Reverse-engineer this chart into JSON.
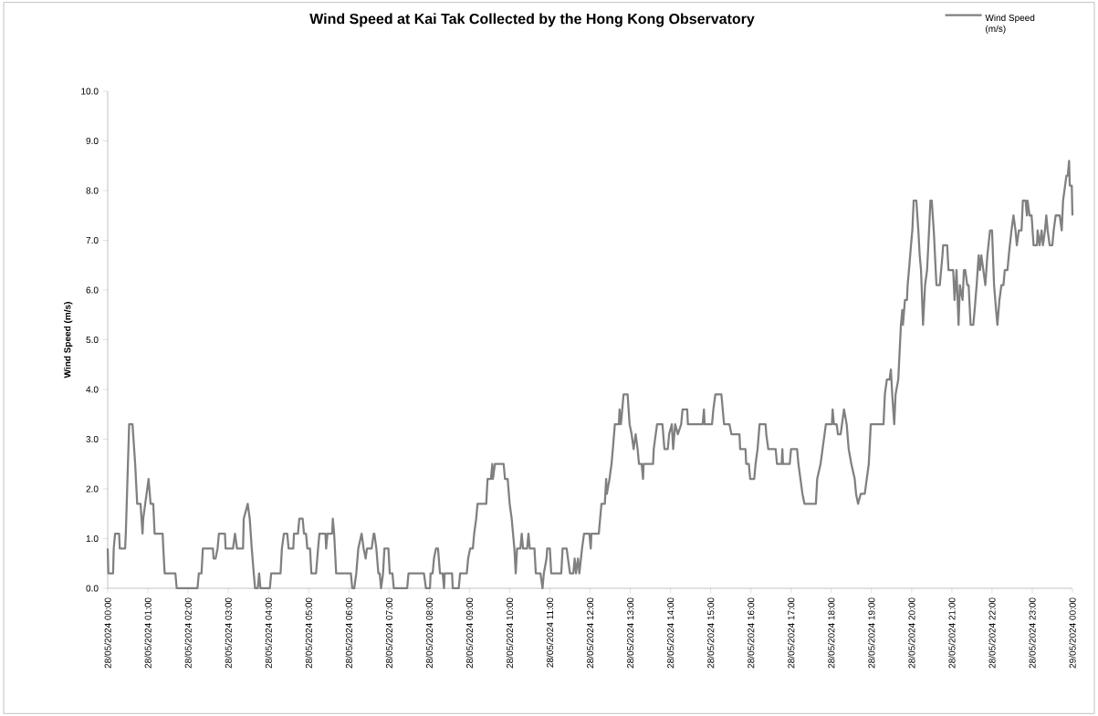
{
  "chart_data": {
    "type": "line",
    "title": "Wind Speed at Kai Tak Collected by the Hong Kong Observatory",
    "ylabel": "Wind Speed (m/s)",
    "legend": "top right",
    "xlim": [
      "2024-05-28T00:00",
      "2024-05-29T00:00"
    ],
    "ylim": [
      0,
      10
    ],
    "xticks": [
      {
        "value": "2024-05-28T00:00",
        "label": "28/05/2024 00:00"
      },
      {
        "value": "2024-05-28T01:00",
        "label": "28/05/2024 01:00"
      },
      {
        "value": "2024-05-28T02:00",
        "label": "28/05/2024 02:00"
      },
      {
        "value": "2024-05-28T03:00",
        "label": "28/05/2024 03:00"
      },
      {
        "value": "2024-05-28T04:00",
        "label": "28/05/2024 04:00"
      },
      {
        "value": "2024-05-28T05:00",
        "label": "28/05/2024 05:00"
      },
      {
        "value": "2024-05-28T06:00",
        "label": "28/05/2024 06:00"
      },
      {
        "value": "2024-05-28T07:00",
        "label": "28/05/2024 07:00"
      },
      {
        "value": "2024-05-28T08:00",
        "label": "28/05/2024 08:00"
      },
      {
        "value": "2024-05-28T09:00",
        "label": "28/05/2024 09:00"
      },
      {
        "value": "2024-05-28T10:00",
        "label": "28/05/2024 10:00"
      },
      {
        "value": "2024-05-28T11:00",
        "label": "28/05/2024 11:00"
      },
      {
        "value": "2024-05-28T12:00",
        "label": "28/05/2024 12:00"
      },
      {
        "value": "2024-05-28T13:00",
        "label": "28/05/2024 13:00"
      },
      {
        "value": "2024-05-28T14:00",
        "label": "28/05/2024 14:00"
      },
      {
        "value": "2024-05-28T15:00",
        "label": "28/05/2024 15:00"
      },
      {
        "value": "2024-05-28T16:00",
        "label": "28/05/2024 16:00"
      },
      {
        "value": "2024-05-28T17:00",
        "label": "28/05/2024 17:00"
      },
      {
        "value": "2024-05-28T18:00",
        "label": "28/05/2024 18:00"
      },
      {
        "value": "2024-05-28T19:00",
        "label": "28/05/2024 19:00"
      },
      {
        "value": "2024-05-28T20:00",
        "label": "28/05/2024 20:00"
      },
      {
        "value": "2024-05-28T21:00",
        "label": "28/05/2024 21:00"
      },
      {
        "value": "2024-05-28T22:00",
        "label": "28/05/2024 22:00"
      },
      {
        "value": "2024-05-28T23:00",
        "label": "28/05/2024 23:00"
      },
      {
        "value": "2024-05-29T00:00",
        "label": "29/05/2024 00:00"
      }
    ],
    "yticks": [
      {
        "value": 0,
        "label": "0.0"
      },
      {
        "value": 1,
        "label": "1.0"
      },
      {
        "value": 2,
        "label": "2.0"
      },
      {
        "value": 3,
        "label": "3.0"
      },
      {
        "value": 4,
        "label": "4.0"
      },
      {
        "value": 5,
        "label": "5.0"
      },
      {
        "value": 6,
        "label": "6.0"
      },
      {
        "value": 7,
        "label": "7.0"
      },
      {
        "value": 8,
        "label": "8.0"
      },
      {
        "value": 9,
        "label": "9.0"
      },
      {
        "value": 10,
        "label": "10.0"
      }
    ],
    "series": [
      {
        "name": "Wind Speed (m/s)",
        "color": "#808080",
        "x": [
          "2024-05-28T00:00",
          "2024-05-28T00:01",
          "2024-05-28T00:08",
          "2024-05-28T00:09",
          "2024-05-28T00:11",
          "2024-05-28T00:17",
          "2024-05-28T00:18",
          "2024-05-28T00:26",
          "2024-05-28T00:27",
          "2024-05-28T00:32",
          "2024-05-28T00:37",
          "2024-05-28T00:41",
          "2024-05-28T00:44",
          "2024-05-28T00:49",
          "2024-05-28T00:52",
          "2024-05-28T00:53",
          "2024-05-28T00:56",
          "2024-05-28T01:01",
          "2024-05-28T01:04",
          "2024-05-28T01:08",
          "2024-05-28T01:10",
          "2024-05-28T01:22",
          "2024-05-28T01:23",
          "2024-05-28T01:25",
          "2024-05-28T01:41",
          "2024-05-28T01:43",
          "2024-05-28T02:14",
          "2024-05-28T02:16",
          "2024-05-28T02:20",
          "2024-05-28T02:22",
          "2024-05-28T02:37",
          "2024-05-28T02:38",
          "2024-05-28T02:41",
          "2024-05-28T02:44",
          "2024-05-28T02:46",
          "2024-05-28T02:55",
          "2024-05-28T02:56",
          "2024-05-28T03:07",
          "2024-05-28T03:10",
          "2024-05-28T03:13",
          "2024-05-28T03:22",
          "2024-05-28T03:23",
          "2024-05-28T03:29",
          "2024-05-28T03:32",
          "2024-05-28T03:35",
          "2024-05-28T03:38",
          "2024-05-28T03:40",
          "2024-05-28T03:44",
          "2024-05-28T03:46",
          "2024-05-28T03:48",
          "2024-05-28T04:02",
          "2024-05-28T04:04",
          "2024-05-28T04:18",
          "2024-05-28T04:20",
          "2024-05-28T04:23",
          "2024-05-28T04:28",
          "2024-05-28T04:30",
          "2024-05-28T04:37",
          "2024-05-28T04:38",
          "2024-05-28T04:44",
          "2024-05-28T04:46",
          "2024-05-28T04:51",
          "2024-05-28T04:53",
          "2024-05-28T04:56",
          "2024-05-28T04:58",
          "2024-05-28T05:02",
          "2024-05-28T05:04",
          "2024-05-28T05:11",
          "2024-05-28T05:14",
          "2024-05-28T05:16",
          "2024-05-28T05:25",
          "2024-05-28T05:26",
          "2024-05-28T05:28",
          "2024-05-28T05:35",
          "2024-05-28T05:36",
          "2024-05-28T05:38",
          "2024-05-28T05:41",
          "2024-05-28T06:03",
          "2024-05-28T06:05",
          "2024-05-28T06:08",
          "2024-05-28T06:11",
          "2024-05-28T06:14",
          "2024-05-28T06:19",
          "2024-05-28T06:22",
          "2024-05-28T06:25",
          "2024-05-28T06:27",
          "2024-05-28T06:34",
          "2024-05-28T06:37",
          "2024-05-28T06:38",
          "2024-05-28T06:41",
          "2024-05-28T06:44",
          "2024-05-28T06:46",
          "2024-05-28T06:48",
          "2024-05-28T06:51",
          "2024-05-28T06:53",
          "2024-05-28T06:59",
          "2024-05-28T07:01",
          "2024-05-28T07:05",
          "2024-05-28T07:07",
          "2024-05-28T07:27",
          "2024-05-28T07:29",
          "2024-05-28T07:52",
          "2024-05-28T07:55",
          "2024-05-28T08:01",
          "2024-05-28T08:02",
          "2024-05-28T08:05",
          "2024-05-28T08:07",
          "2024-05-28T08:10",
          "2024-05-28T08:13",
          "2024-05-28T08:16",
          "2024-05-28T08:20",
          "2024-05-28T08:22",
          "2024-05-28T08:23",
          "2024-05-28T08:34",
          "2024-05-28T08:35",
          "2024-05-28T08:44",
          "2024-05-28T08:46",
          "2024-05-28T08:56",
          "2024-05-28T08:58",
          "2024-05-28T09:01",
          "2024-05-28T09:05",
          "2024-05-28T09:07",
          "2024-05-28T09:10",
          "2024-05-28T09:12",
          "2024-05-28T09:25",
          "2024-05-28T09:27",
          "2024-05-28T09:32",
          "2024-05-28T09:34",
          "2024-05-28T09:35",
          "2024-05-28T09:38",
          "2024-05-28T09:51",
          "2024-05-28T09:53",
          "2024-05-28T09:57",
          "2024-05-28T10:00",
          "2024-05-28T10:03",
          "2024-05-28T10:07",
          "2024-05-28T10:09",
          "2024-05-28T10:11",
          "2024-05-28T10:16",
          "2024-05-28T10:18",
          "2024-05-28T10:20",
          "2024-05-28T10:26",
          "2024-05-28T10:28",
          "2024-05-28T10:30",
          "2024-05-28T10:37",
          "2024-05-28T10:39",
          "2024-05-28T10:46",
          "2024-05-28T10:49",
          "2024-05-28T10:51",
          "2024-05-28T10:55",
          "2024-05-28T10:56",
          "2024-05-28T11:00",
          "2024-05-28T11:02",
          "2024-05-28T11:17",
          "2024-05-28T11:19",
          "2024-05-28T11:25",
          "2024-05-28T11:27",
          "2024-05-28T11:30",
          "2024-05-28T11:35",
          "2024-05-28T11:37",
          "2024-05-28T11:39",
          "2024-05-28T11:42",
          "2024-05-28T11:44",
          "2024-05-28T11:48",
          "2024-05-28T11:51",
          "2024-05-28T11:59",
          "2024-05-28T12:01",
          "2024-05-28T12:02",
          "2024-05-28T12:13",
          "2024-05-28T12:15",
          "2024-05-28T12:17",
          "2024-05-28T12:22",
          "2024-05-28T12:24",
          "2024-05-28T12:25",
          "2024-05-28T12:29",
          "2024-05-28T12:32",
          "2024-05-28T12:34",
          "2024-05-28T12:37",
          "2024-05-28T12:43",
          "2024-05-28T12:44",
          "2024-05-28T12:46",
          "2024-05-28T12:48",
          "2024-05-28T12:50",
          "2024-05-28T12:56",
          "2024-05-28T12:59",
          "2024-05-28T13:02",
          "2024-05-28T13:05",
          "2024-05-28T13:08",
          "2024-05-28T13:11",
          "2024-05-28T13:13",
          "2024-05-28T13:17",
          "2024-05-28T13:19",
          "2024-05-28T13:20",
          "2024-05-28T13:34",
          "2024-05-28T13:35",
          "2024-05-28T13:40",
          "2024-05-28T13:48",
          "2024-05-28T13:51",
          "2024-05-28T13:56",
          "2024-05-28T13:58",
          "2024-05-28T14:02",
          "2024-05-28T14:04",
          "2024-05-28T14:07",
          "2024-05-28T14:11",
          "2024-05-28T14:16",
          "2024-05-28T14:18",
          "2024-05-28T14:25",
          "2024-05-28T14:26",
          "2024-05-28T14:48",
          "2024-05-28T14:50",
          "2024-05-28T14:51",
          "2024-05-28T15:02",
          "2024-05-28T15:04",
          "2024-05-28T15:07",
          "2024-05-28T15:16",
          "2024-05-28T15:18",
          "2024-05-28T15:20",
          "2024-05-28T15:28",
          "2024-05-28T15:31",
          "2024-05-28T15:43",
          "2024-05-28T15:44",
          "2024-05-28T15:52",
          "2024-05-28T15:53",
          "2024-05-28T15:57",
          "2024-05-28T15:59",
          "2024-05-28T16:05",
          "2024-05-28T16:07",
          "2024-05-28T16:10",
          "2024-05-28T16:13",
          "2024-05-28T16:22",
          "2024-05-28T16:23",
          "2024-05-28T16:26",
          "2024-05-28T16:37",
          "2024-05-28T16:39",
          "2024-05-28T16:46",
          "2024-05-28T16:47",
          "2024-05-28T16:48",
          "2024-05-28T16:58",
          "2024-05-28T17:00",
          "2024-05-28T17:09",
          "2024-05-28T17:11",
          "2024-05-28T17:14",
          "2024-05-28T17:17",
          "2024-05-28T17:20",
          "2024-05-28T17:37",
          "2024-05-28T17:39",
          "2024-05-28T17:44",
          "2024-05-28T17:47",
          "2024-05-28T17:52",
          "2024-05-28T18:01",
          "2024-05-28T18:02",
          "2024-05-28T18:04",
          "2024-05-28T18:08",
          "2024-05-28T18:10",
          "2024-05-28T18:14",
          "2024-05-28T18:16",
          "2024-05-28T18:19",
          "2024-05-28T18:23",
          "2024-05-28T18:26",
          "2024-05-28T18:30",
          "2024-05-28T18:35",
          "2024-05-28T18:37",
          "2024-05-28T18:40",
          "2024-05-28T18:44",
          "2024-05-28T18:50",
          "2024-05-28T18:53",
          "2024-05-28T18:56",
          "2024-05-28T18:59",
          "2024-05-28T19:18",
          "2024-05-28T19:20",
          "2024-05-28T19:23",
          "2024-05-28T19:27",
          "2024-05-28T19:29",
          "2024-05-28T19:31",
          "2024-05-28T19:34",
          "2024-05-28T19:36",
          "2024-05-28T19:40",
          "2024-05-28T19:44",
          "2024-05-28T19:46",
          "2024-05-28T19:47",
          "2024-05-28T19:50",
          "2024-05-28T19:53",
          "2024-05-28T19:54",
          "2024-05-28T19:56",
          "2024-05-28T19:59",
          "2024-05-28T20:01",
          "2024-05-28T20:03",
          "2024-05-28T20:07",
          "2024-05-28T20:10",
          "2024-05-28T20:12",
          "2024-05-28T20:14",
          "2024-05-28T20:17",
          "2024-05-28T20:20",
          "2024-05-28T20:23",
          "2024-05-28T20:26",
          "2024-05-28T20:28",
          "2024-05-28T20:30",
          "2024-05-28T20:33",
          "2024-05-28T20:37",
          "2024-05-28T20:42",
          "2024-05-28T20:46",
          "2024-05-28T20:47",
          "2024-05-28T20:53",
          "2024-05-28T20:55",
          "2024-05-28T21:02",
          "2024-05-28T21:04",
          "2024-05-28T21:07",
          "2024-05-28T21:10",
          "2024-05-28T21:12",
          "2024-05-28T21:16",
          "2024-05-28T21:18",
          "2024-05-28T21:20",
          "2024-05-28T21:23",
          "2024-05-28T21:25",
          "2024-05-28T21:28",
          "2024-05-28T21:32",
          "2024-05-28T21:34",
          "2024-05-28T21:37",
          "2024-05-28T21:40",
          "2024-05-28T21:42",
          "2024-05-28T21:44",
          "2024-05-28T21:47",
          "2024-05-28T21:50",
          "2024-05-28T21:53",
          "2024-05-28T21:57",
          "2024-05-28T22:00",
          "2024-05-28T22:03",
          "2024-05-28T22:06",
          "2024-05-28T22:08",
          "2024-05-28T22:11",
          "2024-05-28T22:14",
          "2024-05-28T22:17",
          "2024-05-28T22:19",
          "2024-05-28T22:23",
          "2024-05-28T22:25",
          "2024-05-28T22:29",
          "2024-05-28T22:32",
          "2024-05-28T22:35",
          "2024-05-28T22:37",
          "2024-05-28T22:40",
          "2024-05-28T22:44",
          "2024-05-28T22:46",
          "2024-05-28T22:50",
          "2024-05-28T22:52",
          "2024-05-28T22:53",
          "2024-05-28T22:56",
          "2024-05-28T22:59",
          "2024-05-28T23:02",
          "2024-05-28T23:07",
          "2024-05-28T23:08",
          "2024-05-28T23:11",
          "2024-05-28T23:14",
          "2024-05-28T23:16",
          "2024-05-28T23:19",
          "2024-05-28T23:21",
          "2024-05-28T23:23",
          "2024-05-28T23:26",
          "2024-05-28T23:30",
          "2024-05-28T23:32",
          "2024-05-28T23:35",
          "2024-05-28T23:41",
          "2024-05-28T23:44",
          "2024-05-28T23:46",
          "2024-05-28T23:49",
          "2024-05-28T23:51",
          "2024-05-28T23:53",
          "2024-05-28T23:55",
          "2024-05-28T23:56",
          "2024-05-28T23:59",
          "2024-05-29T00:00"
        ],
        "values": [
          0.8,
          0.3,
          0.3,
          0.8,
          1.1,
          1.1,
          0.8,
          0.8,
          1.1,
          3.3,
          3.3,
          2.5,
          1.7,
          1.7,
          1.1,
          1.4,
          1.7,
          2.2,
          1.7,
          1.7,
          1.1,
          1.1,
          0.8,
          0.3,
          0.3,
          0,
          0,
          0.3,
          0.3,
          0.8,
          0.8,
          0.6,
          0.6,
          0.8,
          1.1,
          1.1,
          0.8,
          0.8,
          1.1,
          0.8,
          0.8,
          1.4,
          1.7,
          1.4,
          0.8,
          0.3,
          0,
          0,
          0.3,
          0,
          0,
          0.3,
          0.3,
          0.8,
          1.1,
          1.1,
          0.8,
          0.8,
          1.1,
          1.1,
          1.4,
          1.4,
          1.1,
          1.1,
          0.8,
          0.8,
          0.3,
          0.3,
          0.8,
          1.1,
          1.1,
          0.8,
          1.1,
          1.1,
          1.4,
          1.1,
          0.3,
          0.3,
          0,
          0,
          0.3,
          0.8,
          1.1,
          0.8,
          0.6,
          0.8,
          0.8,
          1.1,
          1.1,
          0.8,
          0.3,
          0.3,
          0,
          0.3,
          0.8,
          0.8,
          0.3,
          0.3,
          0,
          0,
          0.3,
          0.3,
          0,
          0,
          0.3,
          0.3,
          0.6,
          0.8,
          0.8,
          0.3,
          0.3,
          0,
          0.3,
          0.3,
          0,
          0,
          0.3,
          0.3,
          0.6,
          0.8,
          0.8,
          1.1,
          1.4,
          1.7,
          1.7,
          2.2,
          2.2,
          2.5,
          2.2,
          2.5,
          2.5,
          2.2,
          2.2,
          1.7,
          1.4,
          0.8,
          0.3,
          0.8,
          0.8,
          1.1,
          0.8,
          0.8,
          1.1,
          0.8,
          0.8,
          0.3,
          0.3,
          0,
          0.3,
          0.6,
          0.8,
          0.8,
          0.3,
          0.3,
          0.8,
          0.8,
          0.6,
          0.3,
          0.3,
          0.6,
          0.3,
          0.6,
          0.3,
          0.8,
          1.1,
          1.1,
          0.8,
          1.1,
          1.1,
          1.4,
          1.7,
          1.7,
          2.2,
          1.9,
          2.2,
          2.5,
          2.8,
          3.3,
          3.3,
          3.6,
          3.3,
          3.6,
          3.9,
          3.9,
          3.3,
          3.1,
          2.8,
          3.1,
          2.8,
          2.5,
          2.5,
          2.2,
          2.5,
          2.5,
          2.8,
          3.3,
          3.3,
          2.8,
          2.8,
          3.1,
          3.3,
          2.8,
          3.3,
          3.1,
          3.3,
          3.6,
          3.6,
          3.3,
          3.3,
          3.6,
          3.3,
          3.3,
          3.6,
          3.9,
          3.9,
          3.6,
          3.3,
          3.3,
          3.1,
          3.1,
          2.8,
          2.8,
          2.5,
          2.5,
          2.2,
          2.2,
          2.5,
          2.8,
          3.3,
          3.3,
          3.1,
          2.8,
          2.8,
          2.5,
          2.5,
          2.8,
          2.5,
          2.5,
          2.8,
          2.8,
          2.5,
          2.2,
          1.9,
          1.7,
          1.7,
          2.2,
          2.5,
          2.8,
          3.3,
          3.3,
          3.6,
          3.3,
          3.3,
          3.1,
          3.1,
          3.3,
          3.6,
          3.3,
          2.8,
          2.5,
          2.2,
          1.9,
          1.7,
          1.9,
          1.9,
          2.2,
          2.5,
          3.3,
          3.3,
          3.9,
          4.2,
          4.2,
          4.4,
          3.9,
          3.3,
          3.9,
          4.2,
          5.3,
          5.6,
          5.3,
          5.8,
          5.8,
          6.1,
          6.4,
          6.9,
          7.2,
          7.8,
          7.8,
          7.2,
          6.7,
          6.4,
          5.3,
          6.1,
          6.4,
          7.2,
          7.8,
          7.8,
          7.2,
          6.1,
          6.1,
          6.7,
          6.9,
          6.9,
          6.4,
          6.4,
          5.8,
          6.4,
          5.3,
          6.1,
          5.8,
          6.4,
          6.4,
          6.1,
          6.1,
          5.3,
          5.3,
          5.6,
          6.1,
          6.7,
          6.4,
          6.7,
          6.4,
          6.1,
          6.7,
          7.2,
          7.2,
          6.1,
          5.6,
          5.3,
          5.8,
          6.1,
          6.1,
          6.4,
          6.4,
          6.7,
          7.2,
          7.5,
          7.2,
          6.9,
          7.2,
          7.2,
          7.8,
          7.8,
          7.5,
          7.8,
          7.5,
          7.5,
          6.9,
          6.9,
          7.2,
          6.9,
          7.2,
          6.9,
          7.2,
          7.5,
          7.2,
          6.9,
          6.9,
          7.2,
          7.5,
          7.5,
          7.2,
          7.8,
          8.1,
          8.3,
          8.3,
          8.6,
          8.1,
          8.1,
          7.5
        ]
      }
    ]
  }
}
